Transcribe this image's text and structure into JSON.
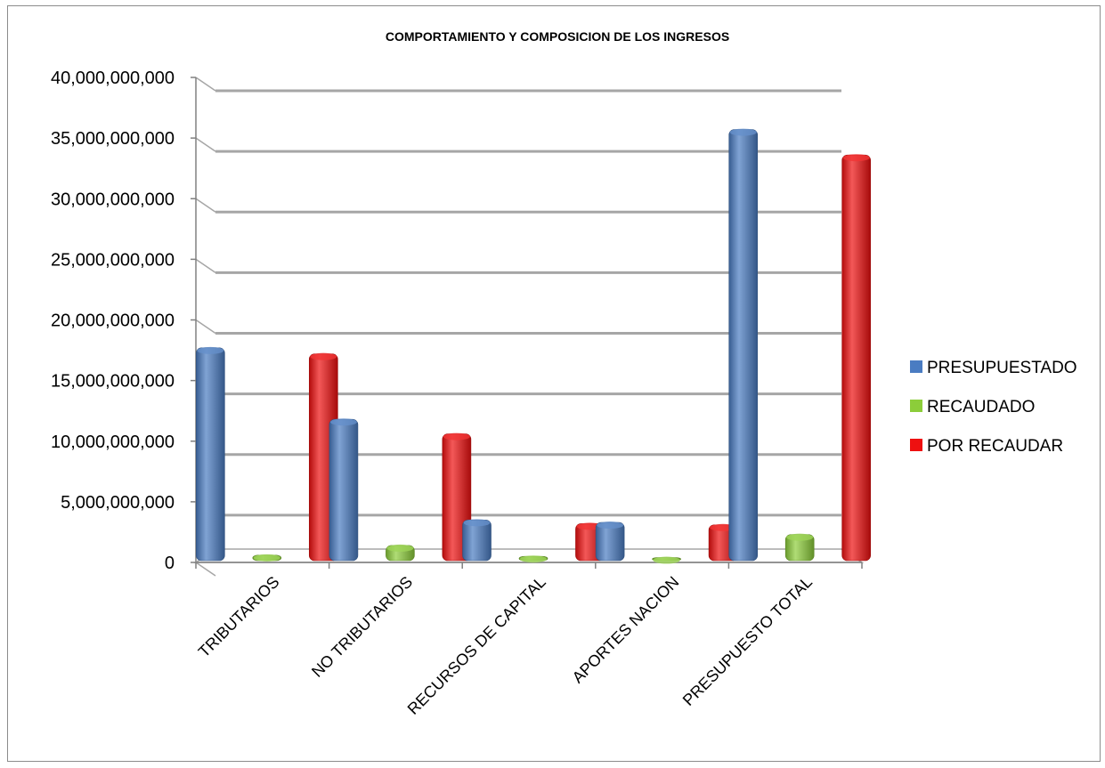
{
  "chart_data": {
    "type": "bar",
    "title": "COMPORTAMIENTO Y COMPOSICION  DE LOS INGRESOS",
    "categories": [
      "TRIBUTARIOS",
      "NO TRIBUTARIOS",
      "RECURSOS DE CAPITAL",
      "APORTES NACION",
      "PRESUPUESTO TOTAL"
    ],
    "series": [
      {
        "name": "PRESUPUESTADO",
        "color": "#4a7cc2",
        "values": [
          17700000000,
          11800000000,
          3500000000,
          3300000000,
          35700000000
        ]
      },
      {
        "name": "RECAUDADO",
        "color": "#8ccd3a",
        "values": [
          600000000,
          1400000000,
          500000000,
          400000000,
          2300000000
        ]
      },
      {
        "name": "POR RECAUDAR",
        "color": "#ee1010",
        "values": [
          17200000000,
          10600000000,
          3200000000,
          3100000000,
          33600000000
        ]
      }
    ],
    "ylim": [
      0,
      40000000000
    ],
    "yticks": [
      "0",
      "5,000,000,000",
      "10,000,000,000",
      "15,000,000,000",
      "20,000,000,000",
      "25,000,000,000",
      "30,000,000,000",
      "35,000,000,000",
      "40,000,000,000"
    ],
    "legend_position": "right",
    "grid": true,
    "xlabel": "",
    "ylabel": ""
  }
}
